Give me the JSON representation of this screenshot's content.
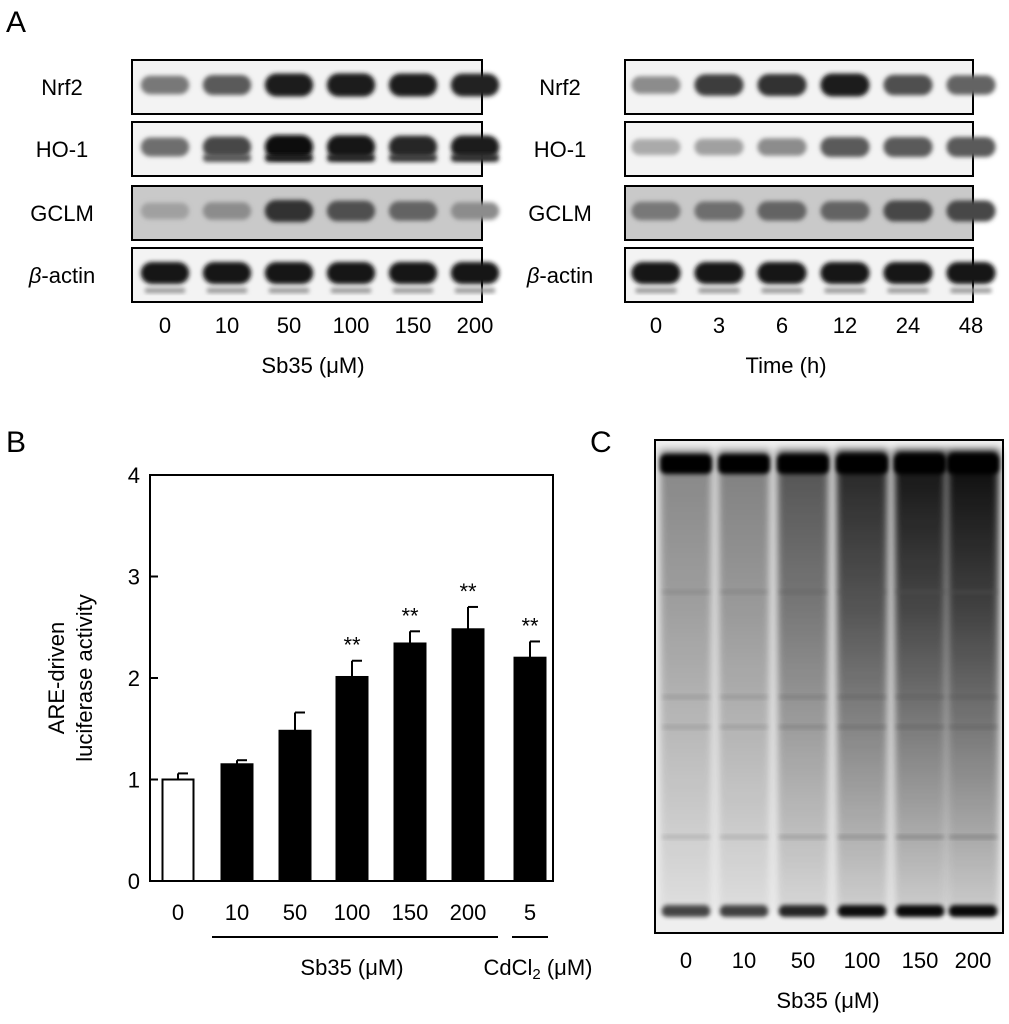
{
  "panel_a": {
    "letter": "A",
    "left": {
      "rows": [
        "Nrf2",
        "HO-1",
        "GCLM",
        "β-actin"
      ],
      "lanes": [
        "0",
        "10",
        "50",
        "100",
        "150",
        "200"
      ],
      "xlabel": "Sb35 (μM)",
      "intensity": {
        "Nrf2": [
          0.45,
          0.6,
          0.9,
          0.92,
          0.9,
          0.88
        ],
        "HO-1": [
          0.5,
          0.7,
          1.0,
          0.95,
          0.85,
          0.9
        ],
        "GCLM": [
          0.25,
          0.35,
          0.8,
          0.65,
          0.55,
          0.35
        ],
        "β-actin": [
          0.95,
          0.95,
          0.95,
          0.95,
          0.95,
          0.95
        ]
      }
    },
    "right": {
      "rows": [
        "Nrf2",
        "HO-1",
        "GCLM",
        "β-actin"
      ],
      "lanes": [
        "0",
        "3",
        "6",
        "12",
        "24",
        "48"
      ],
      "xlabel": "Time (h)",
      "intensity": {
        "Nrf2": [
          0.35,
          0.75,
          0.8,
          0.9,
          0.65,
          0.55
        ],
        "HO-1": [
          0.2,
          0.25,
          0.35,
          0.6,
          0.6,
          0.6
        ],
        "GCLM": [
          0.45,
          0.5,
          0.55,
          0.55,
          0.7,
          0.7
        ],
        "β-actin": [
          0.95,
          0.95,
          0.95,
          0.95,
          0.95,
          0.95
        ]
      }
    }
  },
  "panel_b": {
    "letter": "B"
  },
  "panel_c": {
    "letter": "C",
    "lanes": [
      "0",
      "10",
      "50",
      "100",
      "150",
      "200"
    ],
    "xlabel": "Sb35 (μM)",
    "smear_intensity": [
      0.25,
      0.3,
      0.55,
      0.8,
      0.9,
      0.95
    ]
  },
  "chart_data": {
    "type": "bar",
    "categories": [
      "0",
      "10",
      "50",
      "100",
      "150",
      "200",
      "5"
    ],
    "values": [
      1.0,
      1.15,
      1.48,
      2.01,
      2.34,
      2.48,
      2.2
    ],
    "errors": [
      0.06,
      0.04,
      0.18,
      0.16,
      0.12,
      0.22,
      0.16
    ],
    "bar_fill": [
      "#ffffff",
      "#000000",
      "#000000",
      "#000000",
      "#000000",
      "#000000",
      "#000000"
    ],
    "significance": [
      "",
      "",
      "",
      "**",
      "**",
      "**",
      "**"
    ],
    "ylabel_line1": "ARE-driven",
    "ylabel_line2": "luciferase activity",
    "yticks": [
      "0",
      "1",
      "2",
      "3",
      "4"
    ],
    "ylim": [
      0,
      4
    ],
    "groups": [
      {
        "label": "Sb35 (μM)",
        "from": 1,
        "to": 5
      },
      {
        "label_main": "CdCl",
        "label_sub": "2",
        "label_unit": " (μM)",
        "from": 6,
        "to": 6
      }
    ]
  }
}
